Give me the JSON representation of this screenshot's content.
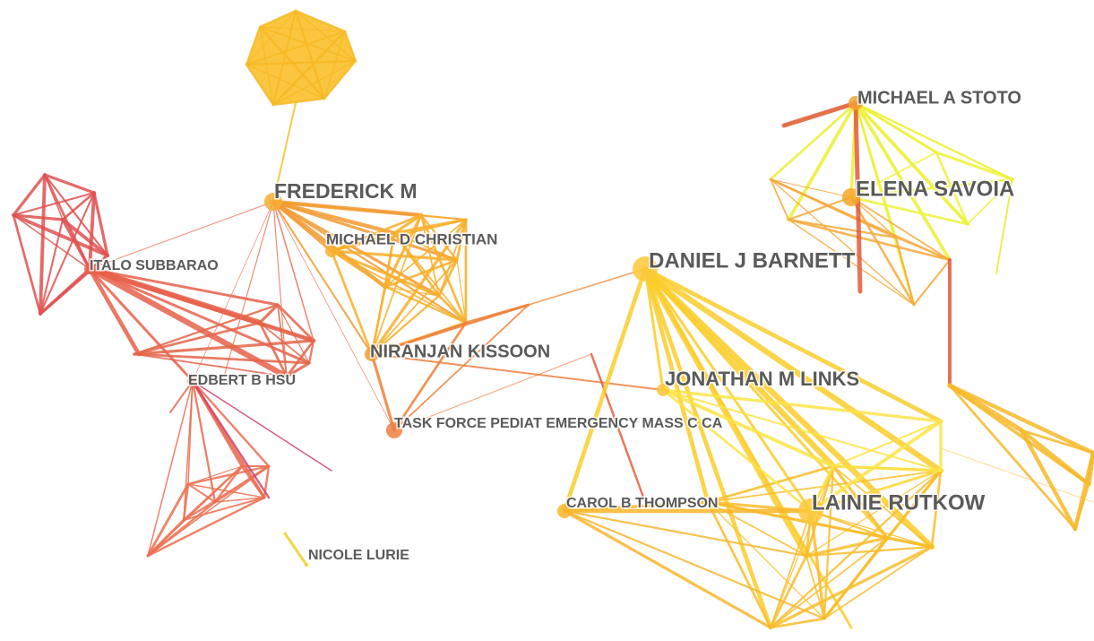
{
  "nodes": [
    {
      "label": "MICHAEL A STOTO"
    },
    {
      "label": "ELENA SAVOIA"
    },
    {
      "label": "FREDERICK M"
    },
    {
      "label": "MICHAEL D CHRISTIAN"
    },
    {
      "label": "DANIEL J BARNETT"
    },
    {
      "label": "ITALO SUBBARAO"
    },
    {
      "label": "NIRANJAN KISSOON"
    },
    {
      "label": "JONATHAN M LINKS"
    },
    {
      "label": "EDBERT B HSU"
    },
    {
      "label": "TASK FORCE PEDIAT EMERGENCY MASS C CA"
    },
    {
      "label": "CAROL B THOMPSON"
    },
    {
      "label": "LAINIE RUTKOW"
    },
    {
      "label": "NICOLE LURIE"
    }
  ]
}
